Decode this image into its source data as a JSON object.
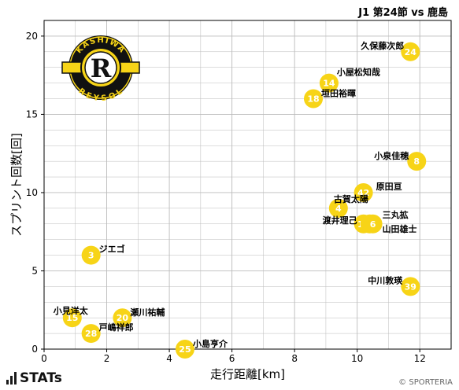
{
  "header": {
    "title": "J1 第24節 vs 鹿島"
  },
  "footer": {
    "brand": "STATs",
    "credit": "© SPORTERIA"
  },
  "logo": {
    "text_top": "KASHIWA",
    "text_bottom": "REYSOL",
    "letter": "R",
    "colors": {
      "yellow": "#f7d417",
      "black": "#111111"
    }
  },
  "colors": {
    "marker": "#f7d417",
    "grid": "#bbbbbb",
    "marker_text": "#ffffff"
  },
  "chart_data": {
    "type": "scatter",
    "xlabel": "走行距離[km]",
    "ylabel": "スプリント回数[回]",
    "xlim": [
      0,
      13
    ],
    "ylim": [
      0,
      21
    ],
    "xticks": [
      0,
      2,
      4,
      6,
      8,
      10,
      12
    ],
    "yticks": [
      0,
      5,
      10,
      15,
      20
    ],
    "grid": true,
    "points": [
      {
        "name": "久保藤次郎",
        "number": "24",
        "x": 11.7,
        "y": 19
      },
      {
        "name": "小屋松知哉",
        "number": "14",
        "x": 9.1,
        "y": 17
      },
      {
        "name": "垣田裕暉",
        "number": "18",
        "x": 8.6,
        "y": 16
      },
      {
        "name": "小泉佳穂",
        "number": "8",
        "x": 11.9,
        "y": 12
      },
      {
        "name": "原田亘",
        "number": "42",
        "x": 10.2,
        "y": 10
      },
      {
        "name": "古賀太陽",
        "number": "4",
        "x": 9.4,
        "y": 9
      },
      {
        "name": "渡井理己",
        "number": "11",
        "x": 10.2,
        "y": 8
      },
      {
        "name": "三丸拡",
        "number": "16",
        "x": 10.4,
        "y": 8
      },
      {
        "name": "山田雄士",
        "number": "6",
        "x": 10.5,
        "y": 8
      },
      {
        "name": "ジエゴ",
        "number": "3",
        "x": 1.5,
        "y": 6
      },
      {
        "name": "中川敦瑛",
        "number": "39",
        "x": 11.7,
        "y": 4
      },
      {
        "name": "小見洋太",
        "number": "15",
        "x": 0.9,
        "y": 2
      },
      {
        "name": "瀬川祐輔",
        "number": "20",
        "x": 2.5,
        "y": 2
      },
      {
        "name": "戸嶋祥郎",
        "number": "28",
        "x": 1.5,
        "y": 1
      },
      {
        "name": "小島亨介",
        "number": "25",
        "x": 4.5,
        "y": 0
      }
    ]
  }
}
